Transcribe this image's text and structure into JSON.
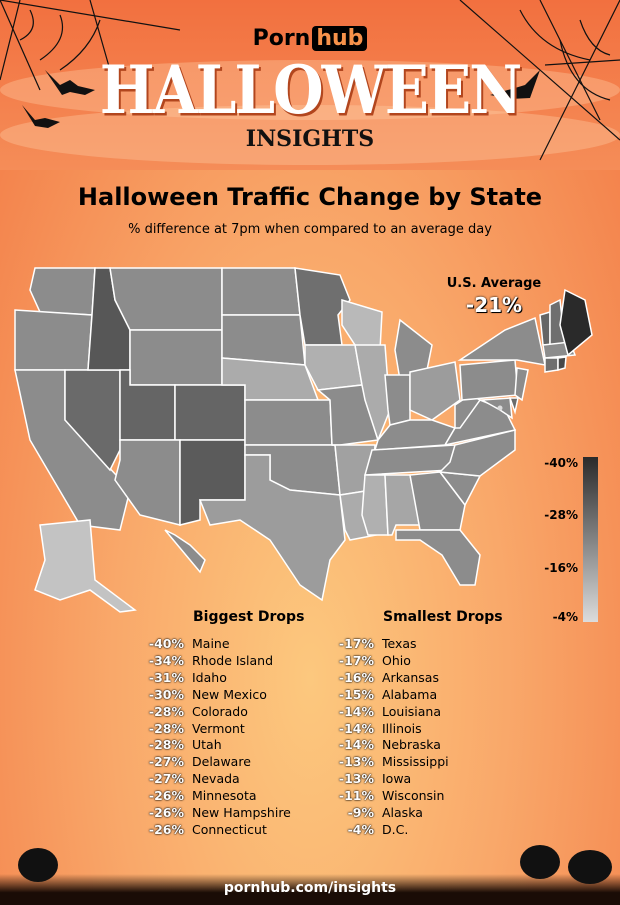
{
  "header": {
    "brand_left": "Porn",
    "brand_right": "hub",
    "title": "HALLOWEEN",
    "subtitle": "INSIGHTS"
  },
  "main": {
    "title": "Halloween Traffic Change by State",
    "subtitle": "% difference at 7pm when compared to an average day"
  },
  "us_average": {
    "label": "U.S. Average",
    "value": "-21%"
  },
  "legend": {
    "labels": [
      "-40%",
      "-28%",
      "-16%",
      "-4%"
    ],
    "min": -40,
    "max": -4,
    "dark_color": "#2a2a2a",
    "light_color": "#dcdcdc"
  },
  "biggest_drops": {
    "heading": "Biggest Drops",
    "items": [
      {
        "pct": "-40%",
        "state": "Maine"
      },
      {
        "pct": "-34%",
        "state": "Rhode Island"
      },
      {
        "pct": "-31%",
        "state": "Idaho"
      },
      {
        "pct": "-30%",
        "state": "New Mexico"
      },
      {
        "pct": "-28%",
        "state": "Colorado"
      },
      {
        "pct": "-28%",
        "state": "Vermont"
      },
      {
        "pct": "-28%",
        "state": "Utah"
      },
      {
        "pct": "-27%",
        "state": "Delaware"
      },
      {
        "pct": "-27%",
        "state": "Nevada"
      },
      {
        "pct": "-26%",
        "state": "Minnesota"
      },
      {
        "pct": "-26%",
        "state": "New Hampshire"
      },
      {
        "pct": "-26%",
        "state": "Connecticut"
      }
    ]
  },
  "smallest_drops": {
    "heading": "Smallest Drops",
    "items": [
      {
        "pct": "-17%",
        "state": "Texas"
      },
      {
        "pct": "-17%",
        "state": "Ohio"
      },
      {
        "pct": "-16%",
        "state": "Arkansas"
      },
      {
        "pct": "-15%",
        "state": "Alabama"
      },
      {
        "pct": "-14%",
        "state": "Louisiana"
      },
      {
        "pct": "-14%",
        "state": "Illinois"
      },
      {
        "pct": "-14%",
        "state": "Nebraska"
      },
      {
        "pct": "-13%",
        "state": "Mississippi"
      },
      {
        "pct": "-13%",
        "state": "Iowa"
      },
      {
        "pct": "-11%",
        "state": "Wisconsin"
      },
      {
        "pct": "-9%",
        "state": "Alaska"
      },
      {
        "pct": "-4%",
        "state": "D.C."
      }
    ]
  },
  "chart_data": {
    "type": "choropleth",
    "title": "Halloween Traffic Change by State",
    "unit": "%",
    "values": {
      "ME": -40,
      "RI": -34,
      "ID": -31,
      "NM": -30,
      "CO": -28,
      "VT": -28,
      "UT": -28,
      "DE": -27,
      "NV": -27,
      "MN": -26,
      "NH": -26,
      "CT": -26,
      "TX": -17,
      "OH": -17,
      "AR": -16,
      "AL": -15,
      "LA": -14,
      "IL": -14,
      "NE": -14,
      "MS": -13,
      "IA": -13,
      "WI": -11,
      "AK": -9,
      "DC": -4
    }
  },
  "footer": {
    "url": "pornhub.com/insights"
  }
}
